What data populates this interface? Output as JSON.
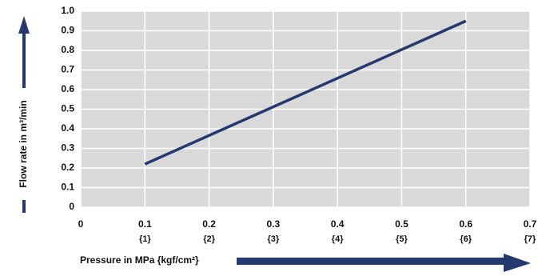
{
  "chart_data": {
    "type": "line",
    "y_label": "Flow rate in m³/min",
    "x_label": "Pressure in MPa {kgf/cm²}",
    "x": [
      0.1,
      0.6
    ],
    "series": [
      {
        "color": "#243a6e",
        "values": [
          0.22,
          0.95
        ]
      }
    ],
    "xlim": [
      0,
      0.7
    ],
    "xticks": [
      0,
      0.1,
      0.2,
      0.3,
      0.4,
      0.5,
      0.6,
      0.7
    ],
    "xtick_secondary_labels": [
      null,
      "{1}",
      "{2}",
      "{3}",
      "{4}",
      "{5}",
      "{6}",
      "{7}"
    ],
    "ylim": [
      0,
      1
    ],
    "yticks": [
      0,
      0.1,
      0.2,
      0.3,
      0.4,
      0.5,
      0.6,
      0.7,
      0.8,
      0.9,
      {
        "value": 1,
        "label": "1.0"
      }
    ],
    "grid": true
  }
}
